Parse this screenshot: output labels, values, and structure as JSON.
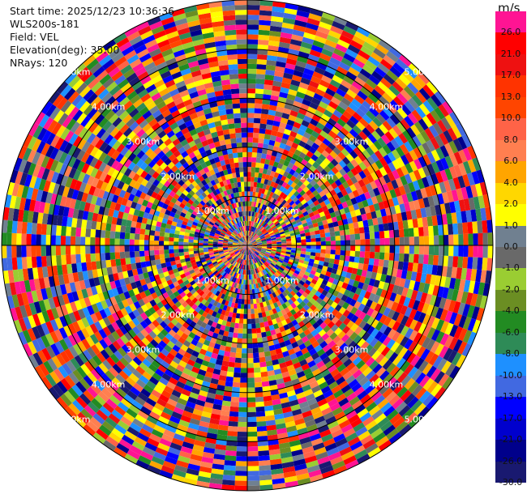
{
  "header": {
    "start_time": "Start time: 2025/12/23 10:36:36",
    "instrument": "WLS200s-181",
    "field": "Field: VEL",
    "elevation": "Elevation(deg): 35.00",
    "nrays": "NRays: 120"
  },
  "colorbar": {
    "unit": "m/s",
    "ticks": [
      "26.0",
      "21.0",
      "17.0",
      "13.0",
      "10.0",
      "8.0",
      "6.0",
      "4.0",
      "2.0",
      "1.0",
      "0.0",
      "-1.0",
      "-2.0",
      "-4.0",
      "-6.0",
      "-8.0",
      "-10.0",
      "-13.0",
      "-17.0",
      "-21.0",
      "-26.0",
      "-30.0"
    ],
    "colors": [
      "#ff1493",
      "#ff0000",
      "#ee1111",
      "#ff3300",
      "#ff4500",
      "#ff6347",
      "#ff7f50",
      "#ffa500",
      "#ffd700",
      "#ffff00",
      "#708090",
      "#696969",
      "#9acd32",
      "#6b8e23",
      "#228b22",
      "#2e8b57",
      "#1e90ff",
      "#4169e1",
      "#0000ff",
      "#0000cd",
      "#00008b",
      "#191970"
    ]
  },
  "chart_data": {
    "type": "heatmap",
    "projection": "polar PPI",
    "field": "VEL",
    "unit": "m/s",
    "n_rays": 120,
    "range_rings_km": [
      1,
      2,
      3,
      4,
      5
    ],
    "range_ring_labels": [
      "1.00km",
      "2.00km",
      "3.00km",
      "4.00km",
      "5.00km"
    ],
    "ring_label_bearings_deg": [
      45,
      135,
      225,
      315
    ],
    "max_range_km": 5.0,
    "value_range": [
      -30,
      26
    ],
    "color_levels": [
      26,
      21,
      17,
      13,
      10,
      8,
      6,
      4,
      2,
      1,
      0,
      -1,
      -2,
      -4,
      -6,
      -8,
      -10,
      -13,
      -17,
      -21,
      -26,
      -30
    ],
    "gate_spacing_km": 0.1,
    "pattern": "noise-dominated, near-uniformly random velocities across all gates"
  }
}
